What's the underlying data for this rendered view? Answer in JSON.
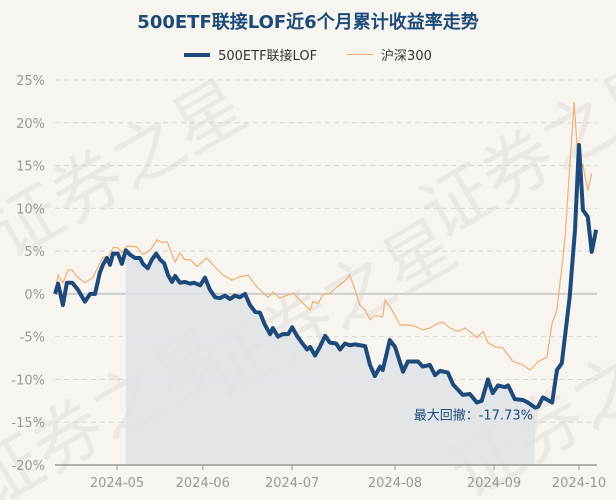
{
  "watermark": "证券之星",
  "colors": {
    "fund": "#1e4a7a",
    "index": "#f0b27a",
    "drawdown": "#dfe3e7",
    "axis_text": "#999999"
  },
  "chart_data": {
    "type": "line",
    "title": "500ETF联接LOF近6个月累计收益率走势",
    "xlabel": "",
    "ylabel": "",
    "x_unit": "trading-day index",
    "xlim": [
      0,
      123.2
    ],
    "ylim": [
      -20,
      25
    ],
    "yticks": [
      -20,
      -15,
      -10,
      -5,
      0,
      5,
      10,
      15,
      20,
      25
    ],
    "ytick_labels": [
      "-20%",
      "-15%",
      "-10%",
      "-5%",
      "0%",
      "5%",
      "10%",
      "15%",
      "20%",
      "25%"
    ],
    "xticks": [
      14.1,
      33.6,
      53.9,
      77.3,
      99.8,
      119.1
    ],
    "xtick_labels": [
      "2024-05",
      "2024-06",
      "2024-07",
      "2024-08",
      "2024-09",
      "2024-10"
    ],
    "grid": true,
    "legend_position": "top-center",
    "series": [
      {
        "name": "500ETF联接LOF",
        "x": [
          0,
          0.7,
          1.8,
          2.7,
          3.9,
          5.2,
          6.8,
          8,
          9.1,
          10.2,
          10.9,
          11.8,
          12.5,
          13.2,
          14.3,
          15.2,
          16.1,
          17,
          18.2,
          19.3,
          20,
          21.1,
          22,
          23,
          23.9,
          24.8,
          25.7,
          26.6,
          27.3,
          28.4,
          29.5,
          30.7,
          31.6,
          33,
          34.1,
          35.2,
          36.4,
          37.5,
          38.6,
          39.8,
          40.9,
          42,
          43.2,
          44.3,
          45.5,
          46.6,
          47.7,
          48.9,
          49.5,
          50.7,
          51.8,
          53,
          53.9,
          55,
          56.1,
          57.3,
          58,
          59.1,
          60.2,
          61.4,
          62.5,
          63.9,
          64.8,
          65.9,
          67,
          68.2,
          69.3,
          70.5,
          71.6,
          72.7,
          73.9,
          74.5,
          76.1,
          77.3,
          79.1,
          80.2,
          82.5,
          83.6,
          85.2,
          86.4,
          87.5,
          89.3,
          90.5,
          92.7,
          94.3,
          95.9,
          97,
          98.4,
          99.5,
          100.7,
          102.3,
          103,
          104.5,
          106.4,
          107.5,
          109.1,
          109.8,
          110.9,
          113,
          114.1,
          115.2,
          117,
          118.2,
          119.1,
          120,
          121.1,
          122,
          123
        ],
        "y": [
          0,
          1.2,
          -1.3,
          1.3,
          1.3,
          0.5,
          -0.9,
          0,
          0,
          2.5,
          3.4,
          4.2,
          3.4,
          4.7,
          4.7,
          3.5,
          5.1,
          4.6,
          4.2,
          4.2,
          3.5,
          3.0,
          4.0,
          4.7,
          4.0,
          3.6,
          2.2,
          1.4,
          2.1,
          1.3,
          1.4,
          1.2,
          1.3,
          1.0,
          1.9,
          0.5,
          -0.4,
          -0.5,
          -0.2,
          -0.6,
          -0.2,
          -0.4,
          0,
          -1.3,
          -2.1,
          -2.2,
          -3.6,
          -4.7,
          -4.0,
          -5.0,
          -4.7,
          -4.7,
          -3.9,
          -4.9,
          -5.7,
          -6.5,
          -6.2,
          -7.2,
          -6.2,
          -4.9,
          -5.7,
          -5.8,
          -6.5,
          -5.8,
          -6.0,
          -5.9,
          -6.0,
          -6.1,
          -8.3,
          -9.6,
          -8.5,
          -8.9,
          -5.4,
          -6.2,
          -9.1,
          -7.9,
          -7.9,
          -8.5,
          -8.3,
          -9.5,
          -9.0,
          -9.2,
          -10.6,
          -11.8,
          -11.7,
          -12.7,
          -12.5,
          -10.0,
          -11.6,
          -10.7,
          -10.9,
          -10.7,
          -12.3,
          -12.4,
          -12.7,
          -13.3,
          -13.2,
          -12.1,
          -12.7,
          -8.9,
          -8.1,
          -0.3,
          7.5,
          17.4,
          9.8,
          9.0,
          4.9,
          7.5
        ]
      },
      {
        "name": "沪深300",
        "x": [
          0,
          0.7,
          1.8,
          3,
          3.9,
          5,
          6.8,
          8.6,
          10.9,
          12,
          13.2,
          14.3,
          15.2,
          16.4,
          18.6,
          20,
          21.6,
          23.2,
          24.3,
          25.5,
          27.3,
          28.4,
          29.5,
          30.7,
          32.3,
          34.5,
          35.9,
          38.2,
          40.2,
          42,
          43.9,
          45.9,
          48.4,
          49.5,
          51.1,
          54.1,
          56.4,
          58,
          58.6,
          59.8,
          60.9,
          62.5,
          64.1,
          65.9,
          67,
          68.2,
          69.3,
          70.5,
          71.6,
          72.7,
          74.5,
          75,
          76.6,
          78.4,
          81.4,
          83.6,
          85.2,
          86.4,
          88.2,
          89.8,
          91.6,
          93.2,
          95.9,
          97.3,
          98.4,
          100,
          101.8,
          104.1,
          106.4,
          108,
          109.8,
          111.8,
          113,
          114.1,
          115.9,
          118,
          119.1,
          120,
          121.1,
          122
        ],
        "y": [
          0.2,
          2.2,
          1.3,
          2.8,
          2.8,
          2.0,
          1.3,
          1.9,
          4.3,
          4.2,
          5.4,
          5.4,
          4.8,
          5.6,
          5.5,
          4.6,
          5.1,
          6.3,
          6.0,
          6.1,
          3.7,
          4.8,
          4.0,
          4.0,
          3.2,
          4.2,
          3.4,
          2.2,
          1.6,
          2.0,
          2.2,
          0.8,
          -0.4,
          0.2,
          -0.5,
          0.1,
          -1.1,
          -1.9,
          -0.9,
          -1.1,
          -0.1,
          0.1,
          0.8,
          1.5,
          2.2,
          0.5,
          -1.3,
          -1.9,
          -3.0,
          -2.5,
          -2.7,
          -0.7,
          -1.9,
          -3.6,
          -3.7,
          -4.2,
          -4.0,
          -3.6,
          -3.3,
          -4.0,
          -4.4,
          -4.0,
          -5.1,
          -4.4,
          -5.7,
          -6.2,
          -6.3,
          -7.9,
          -8.3,
          -8.9,
          -7.9,
          -7.4,
          -3.4,
          -1.9,
          6.3,
          22.4,
          13.9,
          15.1,
          12.1,
          14.1
        ]
      }
    ],
    "drawdown": {
      "start_x": 16.1,
      "end_x": 109.1,
      "label": "最大回撤：-17.73%",
      "value": -17.73
    }
  }
}
